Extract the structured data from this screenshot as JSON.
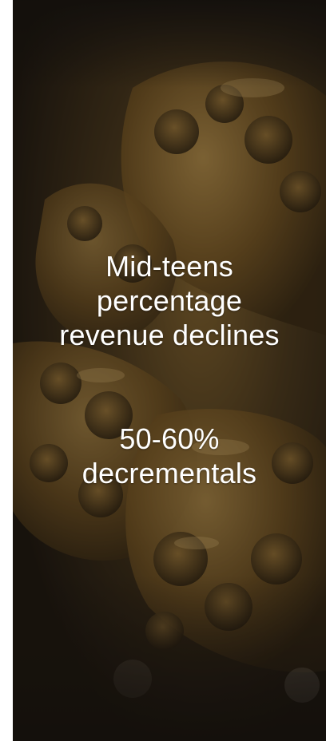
{
  "slide": {
    "background_image": "drill-bit-photo",
    "accent_color": "#b8862f",
    "statement_1": {
      "line_1": "Mid-teens",
      "line_2": "percentage",
      "line_3": "revenue declines"
    },
    "statement_2": {
      "line_1": "50-60%",
      "line_2": "decrementals"
    }
  }
}
